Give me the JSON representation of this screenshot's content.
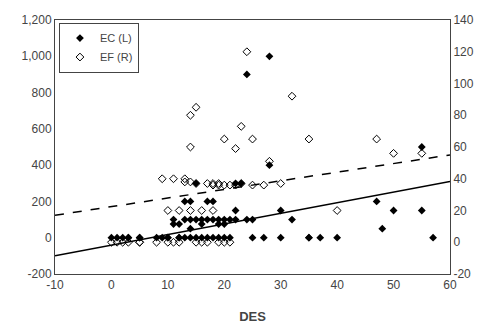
{
  "chart_data": {
    "type": "scatter",
    "xlabel": "DES",
    "xlim": [
      -10,
      60
    ],
    "xticks": [
      -10,
      0,
      10,
      20,
      30,
      40,
      50,
      60
    ],
    "ylim": [
      -200,
      1200
    ],
    "yticks": [
      -200,
      0,
      200,
      400,
      600,
      800,
      {
        "value": 1000,
        "label": "1,000"
      },
      {
        "value": 1200,
        "label": "1,200"
      }
    ],
    "y2lim": [
      -20,
      140
    ],
    "y2ticks": [
      -20,
      0,
      20,
      40,
      60,
      80,
      100,
      120,
      140
    ],
    "grid": false,
    "legend": "upper left",
    "series": [
      {
        "name": "EC (L)",
        "type": "scatter",
        "marker": "diamond",
        "color": "#000000",
        "x": [
          0,
          1,
          2,
          3,
          3,
          5,
          5,
          8,
          9,
          10,
          10,
          11,
          11,
          12,
          12,
          12,
          13,
          13,
          13,
          14,
          14,
          14,
          14,
          15,
          15,
          15,
          16,
          16,
          16,
          17,
          17,
          17,
          18,
          18,
          18,
          19,
          19,
          19,
          20,
          20,
          20,
          21,
          21,
          22,
          22,
          22,
          23,
          24,
          24,
          25,
          25,
          27,
          28,
          28,
          30,
          30,
          32,
          35,
          35,
          37,
          40,
          47,
          48,
          50,
          55,
          55,
          57
        ],
        "values": [
          0,
          0,
          0,
          0,
          0,
          0,
          0,
          0,
          0,
          0,
          0,
          100,
          75,
          0,
          0,
          75,
          200,
          100,
          0,
          0,
          50,
          100,
          200,
          300,
          100,
          0,
          100,
          0,
          75,
          100,
          200,
          0,
          100,
          0,
          200,
          0,
          75,
          100,
          100,
          0,
          75,
          100,
          0,
          300,
          100,
          150,
          300,
          900,
          100,
          100,
          0,
          0,
          1000,
          400,
          150,
          0,
          100,
          0,
          0,
          0,
          0,
          200,
          50,
          150,
          500,
          150,
          0
        ]
      },
      {
        "name": "EF (R)",
        "type": "scatter",
        "marker": "diamond-open",
        "color": "#000000",
        "axis": "y2",
        "x": [
          0,
          1,
          2,
          3,
          5,
          5,
          8,
          9,
          10,
          10,
          11,
          11,
          12,
          12,
          13,
          13,
          14,
          14,
          14,
          14,
          15,
          15,
          15,
          16,
          16,
          17,
          17,
          18,
          18,
          18,
          19,
          19,
          19,
          20,
          20,
          20,
          21,
          21,
          22,
          22,
          23,
          23,
          24,
          25,
          25,
          27,
          28,
          30,
          32,
          35,
          40,
          47,
          50,
          55
        ],
        "values": [
          0,
          0,
          0,
          0,
          0,
          0,
          0,
          40,
          20,
          0,
          0,
          40,
          20,
          0,
          40,
          38,
          80,
          60,
          38,
          20,
          37,
          85,
          0,
          20,
          0,
          37,
          0,
          36,
          20,
          37,
          0,
          37,
          36,
          36,
          0,
          65,
          36,
          0,
          36,
          59,
          73,
          37,
          120,
          36,
          65,
          36,
          51,
          37,
          92,
          65,
          20,
          65,
          56,
          56
        ]
      },
      {
        "type": "line",
        "line_style": "solid",
        "color": "#000000",
        "x": [
          -10,
          60
        ],
        "values": [
          -100,
          310
        ]
      },
      {
        "type": "line",
        "line_style": "dashed",
        "color": "#000000",
        "axis": "y2",
        "x": [
          -10,
          60
        ],
        "values": [
          17,
          55
        ]
      }
    ]
  }
}
